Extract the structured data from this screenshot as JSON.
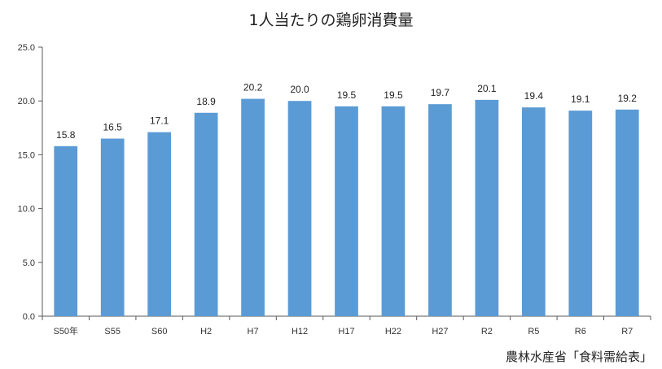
{
  "chart_data": {
    "type": "bar",
    "title": "1人当たりの鶏卵消費量",
    "categories": [
      "S50年",
      "S55",
      "S60",
      "H2",
      "H7",
      "H12",
      "H17",
      "H22",
      "H27",
      "R2",
      "R5",
      "R6",
      "R7"
    ],
    "values": [
      15.8,
      16.5,
      17.1,
      18.9,
      20.2,
      20.0,
      19.5,
      19.5,
      19.7,
      20.1,
      19.4,
      19.1,
      19.2
    ],
    "data_labels": [
      "15.8",
      "16.5",
      "17.1",
      "18.9",
      "20.2",
      "20.0",
      "19.5",
      "19.5",
      "19.7",
      "20.1",
      "19.4",
      "19.1",
      "19.2"
    ],
    "y_ticks": [
      "0.0",
      "5.0",
      "10.0",
      "15.0",
      "20.0",
      "25.0"
    ],
    "ylim": [
      0,
      25
    ],
    "xlabel": "",
    "ylabel": "",
    "grid": false,
    "legend": "none",
    "bar_color": "#5B9BD5",
    "source": "農林水産省「食料需給表」"
  }
}
